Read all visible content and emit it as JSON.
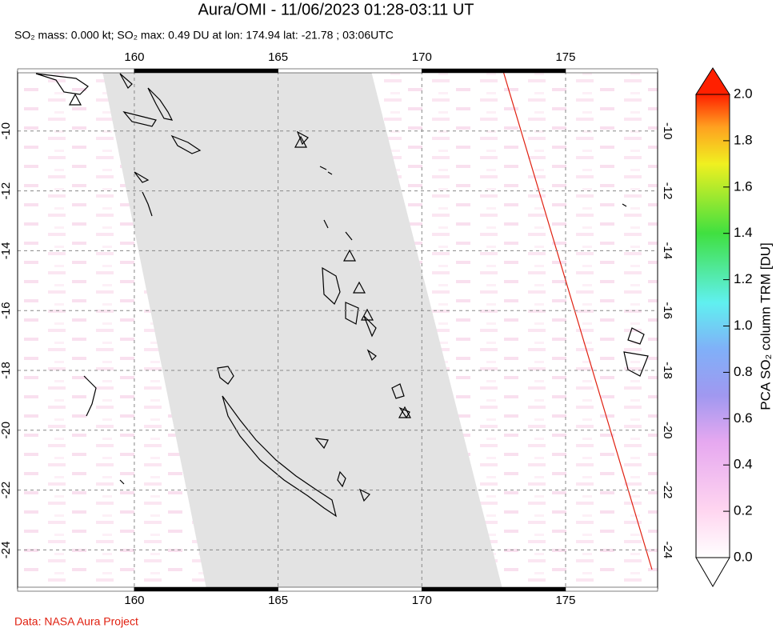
{
  "chart_data": {
    "type": "map",
    "title": "Aura/OMI - 11/06/2023 01:28-03:11 UT",
    "subtitle": "SO₂ mass: 0.000 kt; SO₂ max: 0.49 DU at lon: 174.94 lat: -21.78 ; 03:06UTC",
    "xlim": [
      155.94,
      178.2
    ],
    "xticks": [
      160,
      165,
      170,
      175
    ],
    "ylim": [
      -25.3,
      -8
    ],
    "yticks": [
      -10,
      -12,
      -14,
      -16,
      -18,
      -20,
      -22,
      -24
    ],
    "grid": true,
    "colorbar": {
      "label": "PCA SO₂ column TRM [DU]",
      "lim": [
        0,
        2
      ],
      "ticks": [
        {
          "value": 0,
          "label": "0.0"
        },
        {
          "value": 0.2,
          "label": "0.2"
        },
        {
          "value": 0.4,
          "label": "0.4"
        },
        {
          "value": 0.6,
          "label": "0.6"
        },
        {
          "value": 0.8,
          "label": "0.8"
        },
        {
          "value": 1,
          "label": "1.0"
        },
        {
          "value": 1.2,
          "label": "1.2"
        },
        {
          "value": 1.4,
          "label": "1.4"
        },
        {
          "value": 1.6,
          "label": "1.6"
        },
        {
          "value": 1.8,
          "label": "1.8"
        },
        {
          "value": 2,
          "label": "2.0"
        }
      ]
    },
    "source": "Data: NASA Aura Project"
  }
}
